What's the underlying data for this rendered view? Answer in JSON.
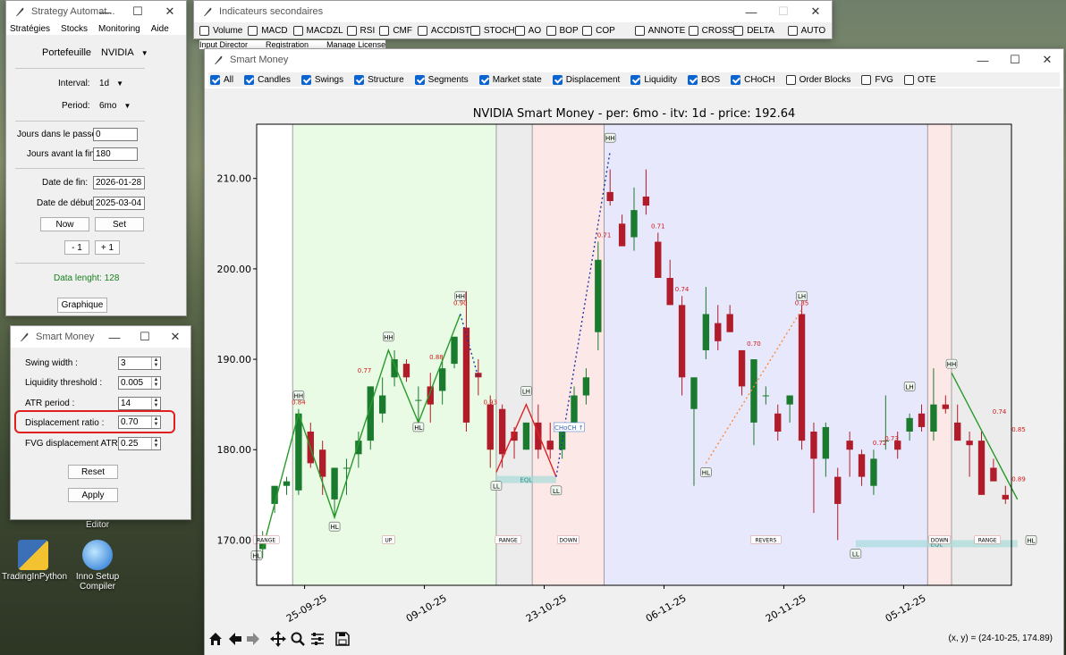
{
  "desktop": {
    "icons": [
      {
        "label": "TradingInPython"
      },
      {
        "label": "Inno Setup Compiler"
      }
    ],
    "editor_label": "Editor"
  },
  "strategy_window": {
    "title": "Strategy Automat...",
    "menu": [
      "Stratégies",
      "Stocks",
      "Monitoring",
      "Aide"
    ],
    "portfolio_label": "Portefeuille",
    "portfolio_value": "NVIDIA",
    "interval_label": "Interval:",
    "interval_value": "1d",
    "period_label": "Period:",
    "period_value": "6mo",
    "days_past_label": "Jours dans le passé:",
    "days_past_value": "0",
    "days_before_end_label": "Jours avant la fin:",
    "days_before_end_value": "180",
    "end_date_label": "Date de fin:",
    "end_date_value": "2026-01-28",
    "start_date_label": "Date de début:",
    "start_date_value": "2025-03-04",
    "now_button": "Now",
    "set_button": "Set",
    "minus_button": "- 1",
    "plus_button": "+ 1",
    "data_length": "Data lenght: 128",
    "chart_button": "Graphique"
  },
  "smart_money_params": {
    "title": "Smart Money",
    "swing_width_label": "Swing width :",
    "swing_width_value": "3",
    "liquidity_threshold_label": "Liquidity threshold :",
    "liquidity_threshold_value": "0.005",
    "atr_period_label": "ATR period :",
    "atr_period_value": "14",
    "displacement_ratio_label": "Displacement ratio :",
    "displacement_ratio_value": "0.70",
    "fvg_label": "FVG displacement ATR :",
    "fvg_value": "0.25",
    "reset_button": "Reset",
    "apply_button": "Apply"
  },
  "indicators_window": {
    "title": "Indicateurs secondaires",
    "items": [
      {
        "label": "Volume",
        "checked": false
      },
      {
        "label": "MACD",
        "checked": false
      },
      {
        "label": "MACDZL",
        "checked": false
      },
      {
        "label": "RSI",
        "checked": false
      },
      {
        "label": "CMF",
        "checked": false
      },
      {
        "label": "ACCDIST",
        "checked": false
      },
      {
        "label": "STOCH",
        "checked": false
      },
      {
        "label": "AO",
        "checked": false
      },
      {
        "label": "BOP",
        "checked": false
      },
      {
        "label": "COP",
        "checked": false
      },
      {
        "label": "ANNOTE",
        "checked": false
      },
      {
        "label": "CROSS",
        "checked": false
      },
      {
        "label": "DELTA",
        "checked": false
      },
      {
        "label": "AUTO",
        "checked": false
      }
    ],
    "behind_menu": [
      "Input Director",
      "Registration",
      "Manage License"
    ]
  },
  "chart_window": {
    "title": "Smart Money",
    "options": [
      {
        "label": "All",
        "checked": true
      },
      {
        "label": "Candles",
        "checked": true
      },
      {
        "label": "Swings",
        "checked": true
      },
      {
        "label": "Structure",
        "checked": true
      },
      {
        "label": "Segments",
        "checked": true
      },
      {
        "label": "Market state",
        "checked": true
      },
      {
        "label": "Displacement",
        "checked": true
      },
      {
        "label": "Liquidity",
        "checked": true
      },
      {
        "label": "BOS",
        "checked": true
      },
      {
        "label": "CHoCH",
        "checked": true
      },
      {
        "label": "Order Blocks",
        "checked": false
      },
      {
        "label": "FVG",
        "checked": false
      },
      {
        "label": "OTE",
        "checked": false
      }
    ],
    "status_coords": "(x, y) = (24-10-25, 174.89)"
  },
  "chart_data": {
    "type": "candlestick",
    "title": "NVIDIA Smart Money - per: 6mo - itv: 1d - price: 192.64",
    "ylim": [
      165,
      216
    ],
    "yticks": [
      "170.00",
      "180.00",
      "190.00",
      "200.00",
      "210.00"
    ],
    "xticks": [
      "25-09-25",
      "09-10-25",
      "23-10-25",
      "06-11-25",
      "20-11-25",
      "05-12-25"
    ],
    "xtick_index": [
      3.5,
      13.5,
      23.5,
      33.5,
      43.5,
      53.5
    ],
    "candles": [
      {
        "o": 169,
        "h": 171,
        "l": 168,
        "c": 170.5
      },
      {
        "o": 174,
        "h": 176,
        "l": 173,
        "c": 176
      },
      {
        "o": 176,
        "h": 177,
        "l": 175,
        "c": 176.5
      },
      {
        "o": 175.5,
        "h": 184.5,
        "l": 175,
        "c": 184
      },
      {
        "o": 182,
        "h": 183,
        "l": 178,
        "c": 178.5
      },
      {
        "o": 180,
        "h": 181,
        "l": 175,
        "c": 177
      },
      {
        "o": 174.5,
        "h": 178,
        "l": 172.5,
        "c": 178
      },
      {
        "o": 178,
        "h": 179,
        "l": 175,
        "c": 178
      },
      {
        "o": 179.5,
        "h": 182,
        "l": 178,
        "c": 181
      },
      {
        "o": 181,
        "h": 187,
        "l": 180,
        "c": 187
      },
      {
        "o": 184,
        "h": 188,
        "l": 183,
        "c": 186
      },
      {
        "o": 188,
        "h": 191,
        "l": 187,
        "c": 190
      },
      {
        "o": 189.5,
        "h": 190,
        "l": 187.5,
        "c": 188
      },
      {
        "o": 185.5,
        "h": 187,
        "l": 183,
        "c": 185.5
      },
      {
        "o": 187,
        "h": 188.5,
        "l": 183,
        "c": 185
      },
      {
        "o": 186.5,
        "h": 190,
        "l": 185,
        "c": 189
      },
      {
        "o": 189.5,
        "h": 192,
        "l": 189,
        "c": 192.5
      },
      {
        "o": 193.5,
        "h": 197.5,
        "l": 182,
        "c": 183
      },
      {
        "o": 188.5,
        "h": 190,
        "l": 186,
        "c": 188
      },
      {
        "o": 185,
        "h": 186,
        "l": 178,
        "c": 180
      },
      {
        "o": 184.5,
        "h": 185,
        "l": 178,
        "c": 179.5
      },
      {
        "o": 182,
        "h": 182.5,
        "l": 179,
        "c": 181
      },
      {
        "o": 180,
        "h": 183,
        "l": 180,
        "c": 183
      },
      {
        "o": 183,
        "h": 185,
        "l": 179,
        "c": 180
      },
      {
        "o": 181,
        "h": 183,
        "l": 179,
        "c": 180
      },
      {
        "o": 180,
        "h": 183,
        "l": 179,
        "c": 182
      },
      {
        "o": 183,
        "h": 187,
        "l": 182,
        "c": 186
      },
      {
        "o": 186,
        "h": 189,
        "l": 185,
        "c": 188
      },
      {
        "o": 193,
        "h": 203,
        "l": 191,
        "c": 201
      },
      {
        "o": 208.5,
        "h": 211,
        "l": 207,
        "c": 207.5
      },
      {
        "o": 205,
        "h": 206,
        "l": 202.5,
        "c": 202.5
      },
      {
        "o": 203.5,
        "h": 209,
        "l": 202,
        "c": 206.5
      },
      {
        "o": 208,
        "h": 211,
        "l": 206,
        "c": 207
      },
      {
        "o": 203,
        "h": 204,
        "l": 199,
        "c": 199
      },
      {
        "o": 199,
        "h": 201,
        "l": 196,
        "c": 196
      },
      {
        "o": 196,
        "h": 197,
        "l": 186,
        "c": 188
      },
      {
        "o": 184.5,
        "h": 188,
        "l": 176,
        "c": 188
      },
      {
        "o": 191,
        "h": 198,
        "l": 190,
        "c": 195
      },
      {
        "o": 194,
        "h": 196,
        "l": 191,
        "c": 192
      },
      {
        "o": 195,
        "h": 196,
        "l": 193,
        "c": 193
      },
      {
        "o": 191,
        "h": 191,
        "l": 186,
        "c": 187
      },
      {
        "o": 183,
        "h": 190,
        "l": 180.5,
        "c": 190
      },
      {
        "o": 186,
        "h": 187,
        "l": 185,
        "c": 186
      },
      {
        "o": 184,
        "h": 185,
        "l": 181,
        "c": 182
      },
      {
        "o": 185,
        "h": 186,
        "l": 183,
        "c": 186
      },
      {
        "o": 195,
        "h": 196,
        "l": 180,
        "c": 181
      },
      {
        "o": 182,
        "h": 183,
        "l": 173,
        "c": 179
      },
      {
        "o": 179,
        "h": 183,
        "l": 177,
        "c": 182.5
      },
      {
        "o": 177,
        "h": 178,
        "l": 170,
        "c": 174
      },
      {
        "o": 181,
        "h": 182,
        "l": 177,
        "c": 180
      },
      {
        "o": 179.5,
        "h": 180,
        "l": 176,
        "c": 177
      },
      {
        "o": 176,
        "h": 180,
        "l": 175,
        "c": 179
      },
      {
        "o": 181,
        "h": 186,
        "l": 180,
        "c": 181
      },
      {
        "o": 181,
        "h": 182,
        "l": 179,
        "c": 180
      },
      {
        "o": 182,
        "h": 184,
        "l": 181,
        "c": 183.5
      },
      {
        "o": 184,
        "h": 185,
        "l": 182,
        "c": 182.5
      },
      {
        "o": 182,
        "h": 189,
        "l": 181,
        "c": 185
      },
      {
        "o": 185,
        "h": 186,
        "l": 184,
        "c": 184.5
      },
      {
        "o": 183,
        "h": 185,
        "l": 181,
        "c": 181
      },
      {
        "o": 181,
        "h": 182,
        "l": 177,
        "c": 180.5
      },
      {
        "o": 181,
        "h": 182,
        "l": 175,
        "c": 175
      },
      {
        "o": 178,
        "h": 179,
        "l": 177,
        "c": 176.5
      },
      {
        "o": 175,
        "h": 176,
        "l": 174,
        "c": 174.5
      }
    ],
    "zones": [
      {
        "from": 2.5,
        "to": 19.5,
        "state": "UP",
        "color": "#e9fbe4"
      },
      {
        "from": 19.5,
        "to": 22.5,
        "state": "RANGE",
        "color": "#ececec"
      },
      {
        "from": 22.5,
        "to": 28.5,
        "state": "DOWN",
        "color": "#fde8e8"
      },
      {
        "from": 28.5,
        "to": 55.5,
        "state": "REVERS",
        "color": "#e8e8fd"
      },
      {
        "from": 55.5,
        "to": 57.5,
        "state": "DOWN",
        "color": "#fde8e8"
      },
      {
        "from": 57.5,
        "to": 63,
        "state": "RANGE",
        "color": "#ececec"
      }
    ],
    "zone_labels": [
      {
        "i": 0.3,
        "text": "RANGE"
      },
      {
        "i": 10.5,
        "text": "UP"
      },
      {
        "i": 20.5,
        "text": "RANGE"
      },
      {
        "i": 25.5,
        "text": "DOWN"
      },
      {
        "i": 42,
        "text": "REVERS"
      },
      {
        "i": 56.5,
        "text": "DOWN"
      },
      {
        "i": 60.5,
        "text": "RANGE"
      }
    ],
    "swing_lines": [
      {
        "pts": [
          [
            0,
            169
          ],
          [
            3,
            184
          ],
          [
            6,
            172.5
          ],
          [
            10.5,
            191
          ],
          [
            13,
            183
          ],
          [
            16.5,
            195
          ]
        ],
        "color": "#2a9a2a"
      },
      {
        "pts": [
          [
            19.5,
            177.5
          ],
          [
            22,
            185
          ],
          [
            24.5,
            177
          ]
        ],
        "color": "#dd2222"
      },
      {
        "pts": [
          [
            57.5,
            188.5
          ],
          [
            63,
            174.5
          ]
        ],
        "color": "#2a9a2a"
      }
    ],
    "dotted_lines": [
      {
        "pts": [
          [
            16.5,
            195
          ],
          [
            18,
            188
          ]
        ],
        "color": "#2233aa"
      },
      {
        "pts": [
          [
            24.5,
            177
          ],
          [
            29,
            213
          ]
        ],
        "color": "#2233aa"
      },
      {
        "pts": [
          [
            37,
            178.5
          ],
          [
            45,
            195.5
          ]
        ],
        "color": "#ff8833"
      }
    ],
    "swing_labels": [
      {
        "i": 3,
        "y": 186,
        "text": "HH"
      },
      {
        "i": 6,
        "y": 171.5,
        "text": "HL"
      },
      {
        "i": 10.5,
        "y": 192.5,
        "text": "HH"
      },
      {
        "i": 13,
        "y": 182.5,
        "text": "HL"
      },
      {
        "i": 16.5,
        "y": 197,
        "text": "HH"
      },
      {
        "i": 19.5,
        "y": 176,
        "text": "LL"
      },
      {
        "i": 22,
        "y": 186.5,
        "text": "LH"
      },
      {
        "i": 24.5,
        "y": 175.5,
        "text": "LL"
      },
      {
        "i": 29,
        "y": 214.5,
        "text": "HH"
      },
      {
        "i": 37,
        "y": 177.5,
        "text": "HL"
      },
      {
        "i": 45,
        "y": 197,
        "text": "LH"
      },
      {
        "i": 49.5,
        "y": 168.5,
        "text": "LL"
      },
      {
        "i": 54,
        "y": 187,
        "text": "LH"
      },
      {
        "i": 57.5,
        "y": 189.5,
        "text": "HH"
      },
      {
        "i": -0.5,
        "y": 168.3,
        "text": "HL"
      },
      {
        "i": 64.5,
        "y": 170,
        "text": "HL"
      }
    ],
    "ratios": [
      {
        "i": 3,
        "y": 185,
        "text": "0.84"
      },
      {
        "i": 8.5,
        "y": 188.5,
        "text": "0.77"
      },
      {
        "i": 14.5,
        "y": 190,
        "text": "0.88"
      },
      {
        "i": 16.5,
        "y": 196,
        "text": "0.90"
      },
      {
        "i": 19,
        "y": 185,
        "text": "0.93"
      },
      {
        "i": 28.5,
        "y": 203.5,
        "text": "0.71"
      },
      {
        "i": 33,
        "y": 204.5,
        "text": "0.71"
      },
      {
        "i": 35,
        "y": 197.5,
        "text": "0.74"
      },
      {
        "i": 41,
        "y": 191.5,
        "text": "0.70"
      },
      {
        "i": 45,
        "y": 196,
        "text": "0.85"
      },
      {
        "i": 51.5,
        "y": 180.5,
        "text": "0.72"
      },
      {
        "i": 52.5,
        "y": 181,
        "text": "0.73"
      },
      {
        "i": 61.5,
        "y": 184,
        "text": "0.74"
      },
      {
        "i": 65,
        "y": 182,
        "text": "0.85"
      },
      {
        "i": 65,
        "y": 176.5,
        "text": "0.89"
      }
    ],
    "liquidity": [
      {
        "from": 19.5,
        "to": 24.5,
        "y": 176.7,
        "text": "EQL"
      },
      {
        "from": 49.5,
        "to": 63,
        "y": 169.6,
        "text": "EQL"
      }
    ],
    "choch": {
      "i": 25.5,
      "y": 182.5,
      "text": "CHoCH ↑"
    }
  },
  "colors": {
    "bull": "#1a7a2e",
    "bear": "#b01c2a",
    "highlight": "#e02020",
    "accent": "#0a64d2"
  }
}
